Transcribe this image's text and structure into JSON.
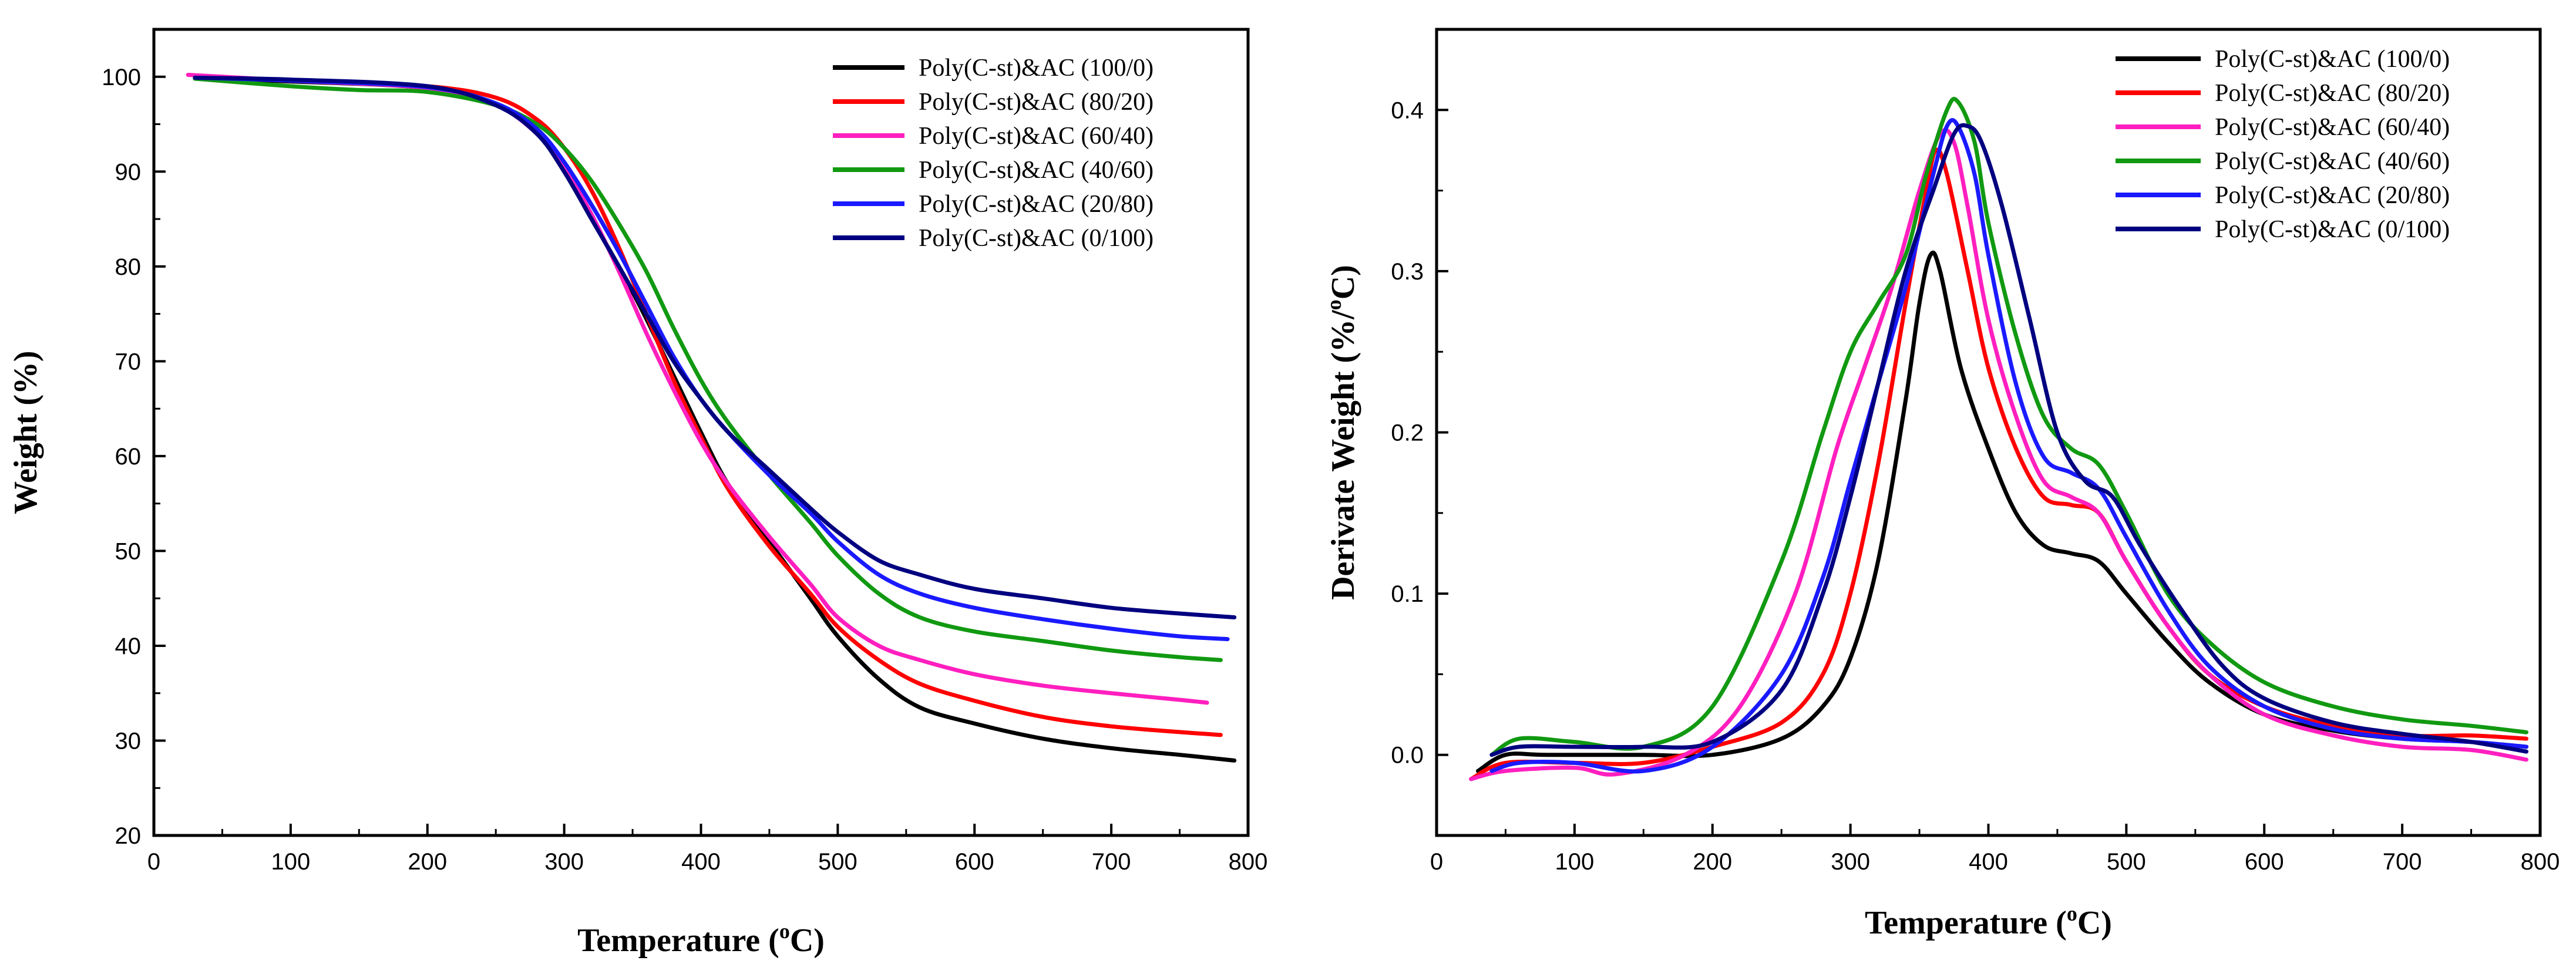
{
  "chart_data": [
    {
      "type": "line",
      "title": "",
      "xlabel": "Temperature (°C)",
      "xlabel_parts": {
        "main": "Temperature (",
        "sup": "o",
        "end": "C)"
      },
      "ylabel": "Weight (%)",
      "xlim": [
        0,
        800
      ],
      "ylim": [
        20,
        105
      ],
      "xticks": [
        0,
        100,
        200,
        300,
        400,
        500,
        600,
        700,
        800
      ],
      "yticks": [
        20,
        30,
        40,
        50,
        60,
        70,
        80,
        90,
        100
      ],
      "legend_position": "top-right",
      "series": [
        {
          "name": "Poly(C-st)&AC (100/0)",
          "color": "#000000",
          "x": [
            30,
            100,
            200,
            250,
            280,
            300,
            320,
            340,
            360,
            380,
            400,
            420,
            450,
            480,
            500,
            530,
            560,
            600,
            650,
            700,
            750,
            790
          ],
          "y": [
            99.8,
            99.5,
            98.8,
            97.0,
            94.0,
            90.0,
            85.0,
            80.0,
            74.5,
            68.5,
            62.5,
            57.0,
            51.0,
            45.0,
            41.0,
            36.5,
            33.5,
            31.8,
            30.2,
            29.2,
            28.5,
            27.9
          ]
        },
        {
          "name": "Poly(C-st)&AC (80/20)",
          "color": "#ff0000",
          "x": [
            30,
            100,
            200,
            250,
            280,
            300,
            320,
            340,
            360,
            380,
            400,
            420,
            450,
            480,
            500,
            530,
            560,
            600,
            650,
            700,
            750,
            780
          ],
          "y": [
            100.0,
            99.6,
            99.0,
            97.8,
            95.5,
            92.5,
            88.0,
            82.0,
            75.0,
            68.0,
            62.0,
            56.5,
            50.5,
            45.5,
            42.0,
            38.5,
            36.0,
            34.2,
            32.5,
            31.5,
            30.9,
            30.6
          ]
        },
        {
          "name": "Poly(C-st)&AC (60/40)",
          "color": "#ff1fbf",
          "x": [
            25,
            100,
            200,
            250,
            280,
            300,
            320,
            340,
            360,
            380,
            400,
            420,
            450,
            480,
            500,
            530,
            560,
            600,
            650,
            700,
            750,
            770
          ],
          "y": [
            100.2,
            99.6,
            98.8,
            97.0,
            94.0,
            90.5,
            85.5,
            79.5,
            73.0,
            67.0,
            61.5,
            57.0,
            51.5,
            46.5,
            43.0,
            40.0,
            38.5,
            37.0,
            35.8,
            35.0,
            34.3,
            34.0
          ]
        },
        {
          "name": "Poly(C-st)&AC (40/60)",
          "color": "#119911",
          "x": [
            30,
            100,
            150,
            200,
            250,
            280,
            300,
            320,
            340,
            360,
            380,
            400,
            420,
            450,
            480,
            500,
            530,
            560,
            600,
            650,
            700,
            750,
            780
          ],
          "y": [
            99.8,
            99.0,
            98.6,
            98.4,
            97.0,
            95.0,
            92.5,
            89.0,
            84.5,
            79.5,
            73.5,
            68.0,
            63.5,
            58.0,
            53.0,
            49.5,
            45.5,
            43.0,
            41.5,
            40.5,
            39.5,
            38.8,
            38.5
          ]
        },
        {
          "name": "Poly(C-st)&AC (20/80)",
          "color": "#1a1aff",
          "x": [
            30,
            100,
            200,
            250,
            280,
            300,
            320,
            340,
            360,
            380,
            400,
            420,
            450,
            480,
            500,
            530,
            560,
            600,
            650,
            700,
            750,
            785
          ],
          "y": [
            99.9,
            99.6,
            98.9,
            97.2,
            94.5,
            91.0,
            86.5,
            81.5,
            76.0,
            70.5,
            66.0,
            62.5,
            58.0,
            54.0,
            51.0,
            47.5,
            45.5,
            44.0,
            42.8,
            41.8,
            41.0,
            40.7
          ]
        },
        {
          "name": "Poly(C-st)&AC (0/100)",
          "color": "#000080",
          "x": [
            30,
            100,
            200,
            250,
            280,
            300,
            320,
            340,
            360,
            380,
            400,
            420,
            450,
            480,
            500,
            530,
            560,
            600,
            650,
            700,
            750,
            790
          ],
          "y": [
            99.9,
            99.7,
            99.0,
            97.0,
            94.0,
            90.0,
            85.0,
            80.0,
            75.0,
            70.0,
            66.0,
            62.5,
            58.5,
            54.5,
            52.0,
            49.0,
            47.5,
            46.0,
            45.0,
            44.0,
            43.4,
            43.0
          ]
        }
      ]
    },
    {
      "type": "line",
      "title": "",
      "xlabel": "Temperature (°C)",
      "xlabel_parts": {
        "main": "Temperature (",
        "sup": "o",
        "end": "C)"
      },
      "ylabel": "Derivate Weight (%/°C)",
      "ylabel_parts": {
        "main": "Derivate Weight (%/",
        "sup": "o",
        "end": "C)"
      },
      "xlim": [
        0,
        800
      ],
      "ylim": [
        -0.05,
        0.45
      ],
      "xticks": [
        0,
        100,
        200,
        300,
        400,
        500,
        600,
        700,
        800
      ],
      "yticks": [
        0.0,
        0.1,
        0.2,
        0.3,
        0.4
      ],
      "ytick_labels": [
        "0.0",
        "0.1",
        "0.2",
        "0.3",
        "0.4"
      ],
      "legend_position": "top-right",
      "series": [
        {
          "name": "Poly(C-st)&AC (100/0)",
          "color": "#000000",
          "x": [
            30,
            50,
            80,
            150,
            200,
            250,
            280,
            300,
            320,
            340,
            350,
            358,
            365,
            380,
            400,
            420,
            440,
            460,
            480,
            500,
            530,
            560,
            600,
            650,
            700,
            750,
            790
          ],
          "y": [
            -0.01,
            0.0,
            0.0,
            0.0,
            0.0,
            0.01,
            0.03,
            0.06,
            0.12,
            0.22,
            0.28,
            0.31,
            0.3,
            0.24,
            0.19,
            0.15,
            0.13,
            0.125,
            0.12,
            0.1,
            0.07,
            0.045,
            0.025,
            0.015,
            0.01,
            0.008,
            0.005
          ]
        },
        {
          "name": "Poly(C-st)&AC (80/20)",
          "color": "#ff0000",
          "x": [
            25,
            50,
            100,
            150,
            200,
            250,
            280,
            300,
            320,
            340,
            355,
            362,
            370,
            385,
            400,
            420,
            440,
            460,
            480,
            500,
            530,
            560,
            600,
            650,
            700,
            750,
            790
          ],
          "y": [
            -0.015,
            -0.005,
            -0.005,
            -0.005,
            0.005,
            0.02,
            0.05,
            0.1,
            0.18,
            0.28,
            0.35,
            0.375,
            0.36,
            0.3,
            0.24,
            0.19,
            0.16,
            0.155,
            0.15,
            0.12,
            0.08,
            0.05,
            0.03,
            0.018,
            0.012,
            0.012,
            0.01
          ]
        },
        {
          "name": "Poly(C-st)&AC (60/40)",
          "color": "#ff1fbf",
          "x": [
            25,
            50,
            100,
            130,
            180,
            220,
            260,
            290,
            310,
            330,
            350,
            365,
            375,
            385,
            400,
            420,
            440,
            460,
            480,
            500,
            530,
            560,
            600,
            650,
            700,
            750,
            790
          ],
          "y": [
            -0.015,
            -0.01,
            -0.008,
            -0.012,
            0.0,
            0.03,
            0.1,
            0.19,
            0.24,
            0.29,
            0.35,
            0.385,
            0.38,
            0.34,
            0.27,
            0.21,
            0.17,
            0.16,
            0.15,
            0.12,
            0.08,
            0.05,
            0.025,
            0.012,
            0.005,
            0.003,
            -0.003
          ]
        },
        {
          "name": "Poly(C-st)&AC (40/60)",
          "color": "#119911",
          "x": [
            40,
            60,
            100,
            150,
            200,
            250,
            280,
            300,
            320,
            340,
            355,
            370,
            378,
            390,
            400,
            420,
            440,
            460,
            480,
            500,
            530,
            560,
            600,
            650,
            700,
            750,
            790
          ],
          "y": [
            0.0,
            0.01,
            0.008,
            0.005,
            0.03,
            0.12,
            0.2,
            0.25,
            0.28,
            0.31,
            0.36,
            0.4,
            0.405,
            0.38,
            0.33,
            0.26,
            0.21,
            0.19,
            0.18,
            0.15,
            0.1,
            0.07,
            0.045,
            0.03,
            0.022,
            0.018,
            0.014
          ]
        },
        {
          "name": "Poly(C-st)&AC (20/80)",
          "color": "#1a1aff",
          "x": [
            40,
            60,
            100,
            150,
            200,
            250,
            280,
            300,
            320,
            340,
            360,
            370,
            378,
            390,
            400,
            420,
            440,
            460,
            480,
            500,
            530,
            560,
            600,
            650,
            700,
            750,
            790
          ],
          "y": [
            -0.01,
            -0.005,
            -0.005,
            -0.01,
            0.005,
            0.05,
            0.11,
            0.17,
            0.23,
            0.29,
            0.36,
            0.39,
            0.39,
            0.36,
            0.31,
            0.23,
            0.185,
            0.175,
            0.165,
            0.135,
            0.09,
            0.055,
            0.03,
            0.016,
            0.01,
            0.008,
            0.005
          ]
        },
        {
          "name": "Poly(C-st)&AC (0/100)",
          "color": "#000080",
          "x": [
            40,
            60,
            100,
            150,
            200,
            250,
            280,
            300,
            320,
            340,
            360,
            375,
            385,
            395,
            410,
            430,
            450,
            470,
            490,
            510,
            540,
            570,
            600,
            650,
            700,
            750,
            790
          ],
          "y": [
            0.0,
            0.005,
            0.005,
            0.005,
            0.008,
            0.04,
            0.1,
            0.16,
            0.23,
            0.3,
            0.35,
            0.385,
            0.39,
            0.38,
            0.34,
            0.27,
            0.2,
            0.17,
            0.16,
            0.13,
            0.09,
            0.055,
            0.035,
            0.02,
            0.013,
            0.008,
            0.002
          ]
        }
      ]
    }
  ]
}
